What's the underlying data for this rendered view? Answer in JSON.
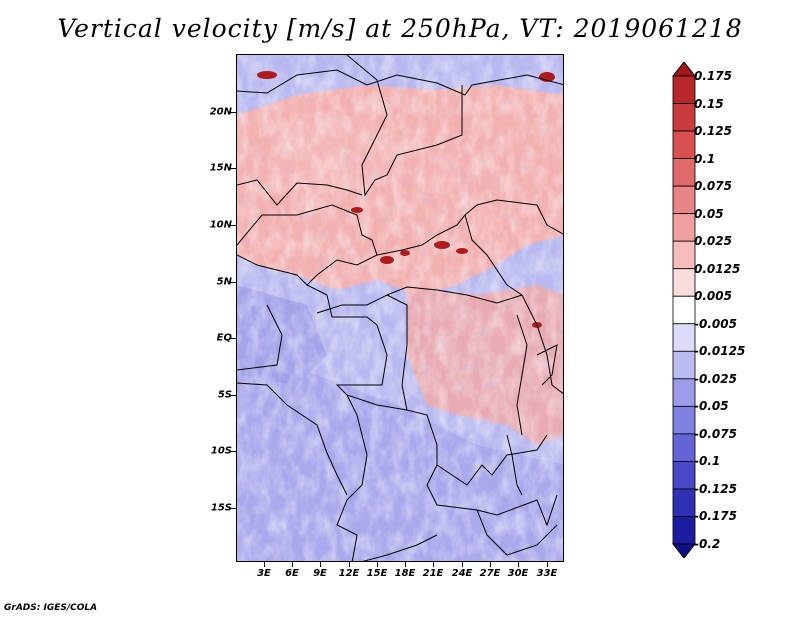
{
  "title": "Vertical velocity [m/s] at 250hPa, VT: 2019061218",
  "footer": "GrADS: IGES/COLA",
  "map": {
    "lat_ticks": [
      "20N",
      "15N",
      "10N",
      "5N",
      "EQ",
      "5S",
      "10S",
      "15S"
    ],
    "lon_ticks": [
      "3E",
      "6E",
      "9E",
      "12E",
      "15E",
      "18E",
      "21E",
      "24E",
      "27E",
      "30E",
      "33E"
    ]
  },
  "colorbar": {
    "labels": [
      "0.175",
      "0.15",
      "0.125",
      "0.1",
      "0.075",
      "0.05",
      "0.025",
      "0.0125",
      "0.005",
      "-0.005",
      "-0.0125",
      "-0.025",
      "-0.05",
      "-0.075",
      "-0.1",
      "-0.125",
      "-0.175",
      "-0.2"
    ],
    "colors": [
      "#a01818",
      "#b82828",
      "#c83c3c",
      "#d85050",
      "#e06a6a",
      "#e88484",
      "#f0a0a0",
      "#f6bcbc",
      "#fbdcdc",
      "#ffffff",
      "#dcdcfa",
      "#bcbcf2",
      "#9c9cea",
      "#8080e0",
      "#6464d6",
      "#4848c8",
      "#3030b4",
      "#1c1ca0",
      "#10108a"
    ]
  }
}
